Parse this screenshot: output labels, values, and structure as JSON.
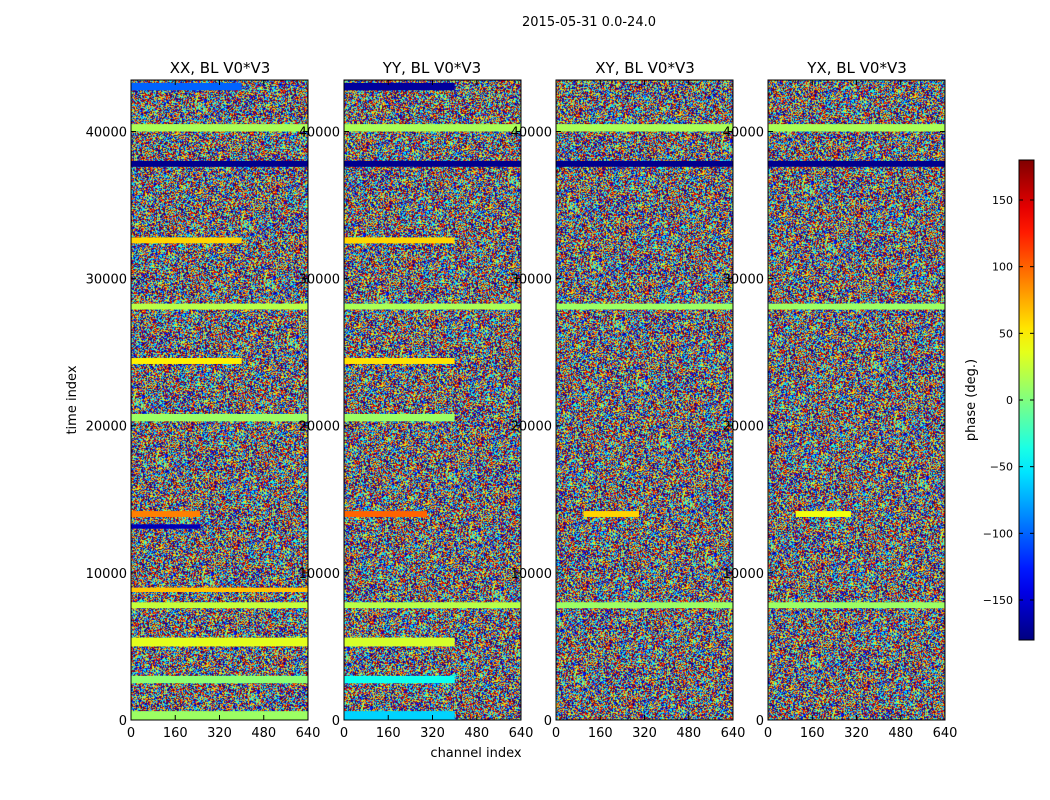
{
  "figure": {
    "suptitle": "2015-05-31 0.0-24.0"
  },
  "chart_data": {
    "type": "heatmap",
    "colormap": "jet",
    "grid": false,
    "colorbar_placement": "right",
    "xlabel": "channel index",
    "ylabel": "time index",
    "xlim": [
      0,
      640
    ],
    "ylim": [
      0,
      43500
    ],
    "xticks": [
      0,
      160,
      320,
      480,
      640
    ],
    "yticks": [
      0,
      10000,
      20000,
      30000,
      40000
    ],
    "colorbar": {
      "label": "phase (deg.)",
      "range": [
        -180,
        180
      ],
      "ticks": [
        -150,
        -100,
        -50,
        0,
        50,
        100,
        150
      ]
    },
    "panels": [
      {
        "title": "XX, BL V0*V3",
        "bands": [
          {
            "y0": 0,
            "y1": 600,
            "x0": 0,
            "x1": 640,
            "phase": 10
          },
          {
            "y0": 2500,
            "y1": 3000,
            "x0": 0,
            "x1": 640,
            "phase": 5
          },
          {
            "y0": 5000,
            "y1": 5600,
            "x0": 0,
            "x1": 640,
            "phase": 35
          },
          {
            "y0": 7600,
            "y1": 8000,
            "x0": 0,
            "x1": 640,
            "phase": 25
          },
          {
            "y0": 8700,
            "y1": 9000,
            "x0": 0,
            "x1": 640,
            "phase": 65
          },
          {
            "y0": 13000,
            "y1": 13300,
            "x0": 0,
            "x1": 250,
            "phase": -160
          },
          {
            "y0": 13800,
            "y1": 14200,
            "x0": 0,
            "x1": 250,
            "phase": 90
          },
          {
            "y0": 20300,
            "y1": 20800,
            "x0": 0,
            "x1": 640,
            "phase": 10
          },
          {
            "y0": 24200,
            "y1": 24600,
            "x0": 0,
            "x1": 400,
            "phase": 50
          },
          {
            "y0": 27900,
            "y1": 28300,
            "x0": 0,
            "x1": 640,
            "phase": 20
          },
          {
            "y0": 32400,
            "y1": 32800,
            "x0": 0,
            "x1": 400,
            "phase": 60
          },
          {
            "y0": 37600,
            "y1": 38000,
            "x0": 0,
            "x1": 640,
            "phase": -175
          },
          {
            "y0": 40000,
            "y1": 40500,
            "x0": 0,
            "x1": 640,
            "phase": 15
          },
          {
            "y0": 42800,
            "y1": 43300,
            "x0": 0,
            "x1": 400,
            "phase": -100
          }
        ]
      },
      {
        "title": "YY, BL V0*V3",
        "bands": [
          {
            "y0": 0,
            "y1": 600,
            "x0": 0,
            "x1": 400,
            "phase": -60
          },
          {
            "y0": 2500,
            "y1": 3000,
            "x0": 0,
            "x1": 400,
            "phase": -40
          },
          {
            "y0": 5000,
            "y1": 5600,
            "x0": 0,
            "x1": 400,
            "phase": 30
          },
          {
            "y0": 7600,
            "y1": 8000,
            "x0": 0,
            "x1": 640,
            "phase": 20
          },
          {
            "y0": 13800,
            "y1": 14200,
            "x0": 0,
            "x1": 300,
            "phase": 100
          },
          {
            "y0": 20300,
            "y1": 20800,
            "x0": 0,
            "x1": 400,
            "phase": 10
          },
          {
            "y0": 24200,
            "y1": 24600,
            "x0": 0,
            "x1": 400,
            "phase": 55
          },
          {
            "y0": 27900,
            "y1": 28300,
            "x0": 0,
            "x1": 640,
            "phase": 15
          },
          {
            "y0": 32400,
            "y1": 32800,
            "x0": 0,
            "x1": 400,
            "phase": 60
          },
          {
            "y0": 37600,
            "y1": 38000,
            "x0": 0,
            "x1": 640,
            "phase": -175
          },
          {
            "y0": 40000,
            "y1": 40500,
            "x0": 0,
            "x1": 640,
            "phase": 15
          },
          {
            "y0": 42800,
            "y1": 43300,
            "x0": 0,
            "x1": 400,
            "phase": -170
          }
        ]
      },
      {
        "title": "XY, BL V0*V3",
        "bands": [
          {
            "y0": 7600,
            "y1": 8000,
            "x0": 0,
            "x1": 640,
            "phase": 10
          },
          {
            "y0": 13800,
            "y1": 14200,
            "x0": 100,
            "x1": 300,
            "phase": 60
          },
          {
            "y0": 27900,
            "y1": 28300,
            "x0": 0,
            "x1": 640,
            "phase": 10
          },
          {
            "y0": 37600,
            "y1": 38000,
            "x0": 0,
            "x1": 640,
            "phase": -175
          },
          {
            "y0": 40000,
            "y1": 40500,
            "x0": 0,
            "x1": 640,
            "phase": 15
          }
        ]
      },
      {
        "title": "YX, BL V0*V3",
        "bands": [
          {
            "y0": 7600,
            "y1": 8000,
            "x0": 0,
            "x1": 640,
            "phase": 10
          },
          {
            "y0": 13800,
            "y1": 14200,
            "x0": 100,
            "x1": 300,
            "phase": 40
          },
          {
            "y0": 27900,
            "y1": 28300,
            "x0": 0,
            "x1": 640,
            "phase": 10
          },
          {
            "y0": 37600,
            "y1": 38000,
            "x0": 0,
            "x1": 640,
            "phase": -175
          },
          {
            "y0": 40000,
            "y1": 40500,
            "x0": 0,
            "x1": 640,
            "phase": 15
          }
        ]
      }
    ]
  }
}
